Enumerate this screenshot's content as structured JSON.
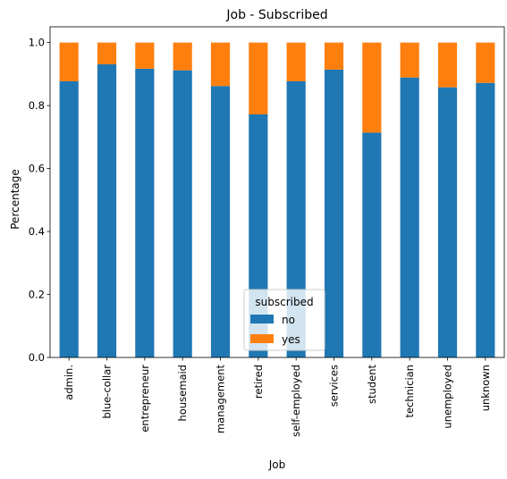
{
  "chart_data": {
    "type": "bar",
    "stacked": true,
    "title": "Job - Subscribed",
    "xlabel": "Job",
    "ylabel": "Percentage",
    "ylim": [
      0,
      1.05
    ],
    "yticks": [
      0.0,
      0.2,
      0.4,
      0.6,
      0.8,
      1.0
    ],
    "ytick_labels": [
      "0.0",
      "0.2",
      "0.4",
      "0.6",
      "0.8",
      "1.0"
    ],
    "categories": [
      "admin.",
      "blue-collar",
      "entrepreneur",
      "housemaid",
      "management",
      "retired",
      "self-employed",
      "services",
      "student",
      "technician",
      "unemployed",
      "unknown"
    ],
    "series": [
      {
        "name": "no",
        "color": "#1f77b4",
        "values": [
          0.877,
          0.931,
          0.917,
          0.912,
          0.862,
          0.772,
          0.877,
          0.914,
          0.714,
          0.889,
          0.858,
          0.872
        ]
      },
      {
        "name": "yes",
        "color": "#ff7f0e",
        "values": [
          0.123,
          0.069,
          0.083,
          0.088,
          0.138,
          0.228,
          0.123,
          0.086,
          0.286,
          0.111,
          0.142,
          0.128
        ]
      }
    ],
    "legend": {
      "title": "subscribed",
      "placement": "lower-center"
    },
    "grid": false
  }
}
